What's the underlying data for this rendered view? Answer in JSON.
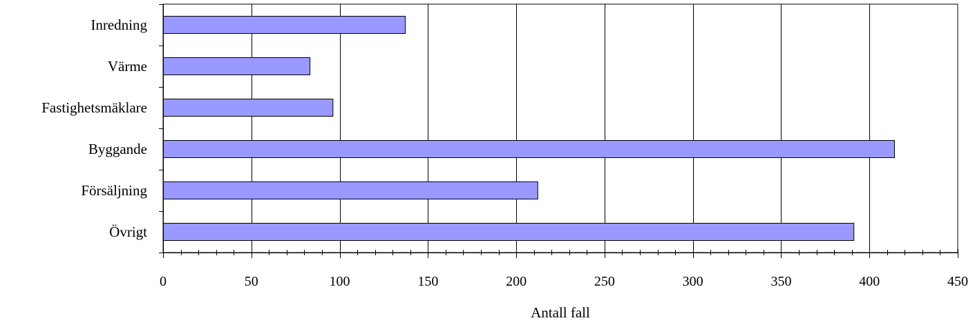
{
  "chart_data": {
    "type": "bar",
    "orientation": "horizontal",
    "categories": [
      "Inredning",
      "Värme",
      "Fastighetsmäklare",
      "Byggande",
      "Försäljning",
      "Övrigt"
    ],
    "values": [
      137,
      83,
      96,
      414,
      212,
      391
    ],
    "xlabel": "Antall fall",
    "ylabel": "",
    "xlim": [
      0,
      450
    ],
    "major_tick_step": 50,
    "minor_tick_step": 10,
    "x_tick_labels": [
      "0",
      "50",
      "100",
      "150",
      "200",
      "250",
      "300",
      "350",
      "400",
      "450"
    ],
    "grid": "vertical major gridlines",
    "legend": "none",
    "bar_color": "#9999ff",
    "bar_edge_color": "#000000"
  }
}
